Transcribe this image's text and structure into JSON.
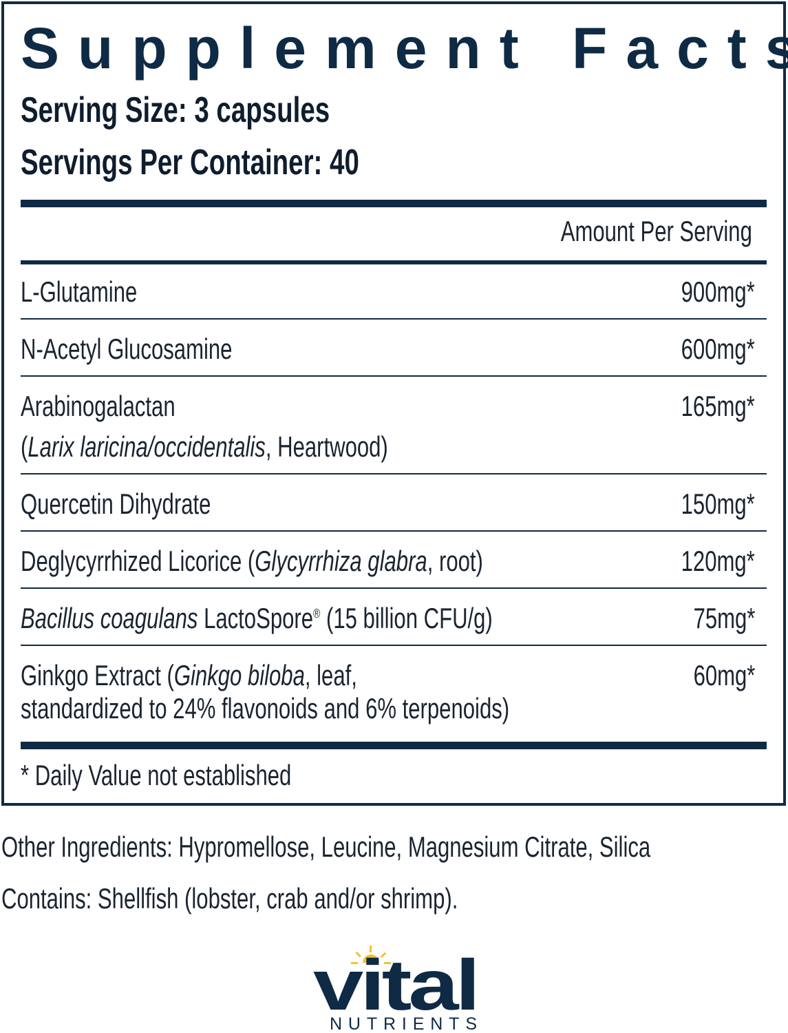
{
  "title": "Supplement Facts",
  "serving_size": "Serving Size: 3 capsules",
  "servings_per_container": "Servings Per Container: 40",
  "amount_header": "Amount Per Serving",
  "ingredients": [
    {
      "name": "L-Glutamine",
      "amount": "900mg*"
    },
    {
      "name": "N-Acetyl Glucosamine",
      "amount": "600mg*"
    },
    {
      "name": "Arabinogalactan",
      "name_line2_open": "(",
      "name_line2_italic": "Larix laricina/occidentalis",
      "name_line2_rest": ", Heartwood)",
      "amount": "165mg*"
    },
    {
      "name": "Quercetin Dihydrate",
      "amount": "150mg*"
    },
    {
      "name": "Deglycyrrhized Licorice (",
      "name_italic": "Glycyrrhiza glabra",
      "name_rest": ", root)",
      "amount": "120mg*"
    },
    {
      "name_italic": "Bacillus coagulans",
      "name": " LactoSpore",
      "reg": "®",
      "name_rest": " (15 billion CFU/g)",
      "amount": "75mg*"
    },
    {
      "name": "Ginkgo Extract (",
      "name_italic": "Ginkgo biloba",
      "name_rest": ",  leaf,",
      "name_line2": "standardized to 24% flavonoids and 6% terpenoids)",
      "amount": "60mg*"
    }
  ],
  "footnote": "* Daily Value not established",
  "other_ingredients": "Other Ingredients: Hypromellose, Leucine, Magnesium Citrate, Silica",
  "contains": "Contains: Shellfish (lobster, crab and/or shrimp).",
  "brand": {
    "name": "vital",
    "sub": "NUTRIENTS",
    "color": "#0f2a44",
    "accent": "#f2c230"
  }
}
